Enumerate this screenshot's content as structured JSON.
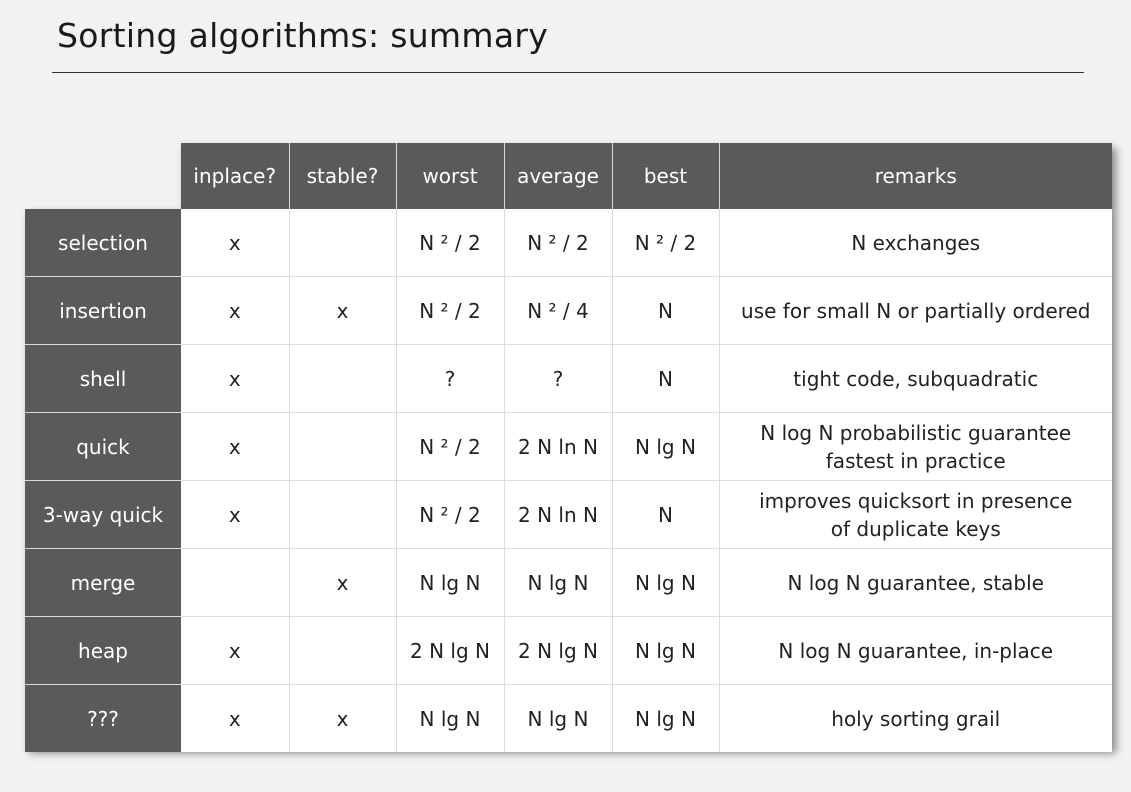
{
  "title": "Sorting algorithms: summary",
  "columns": [
    "inplace?",
    "stable?",
    "worst",
    "average",
    "best",
    "remarks"
  ],
  "rows": [
    {
      "name": "selection",
      "inplace": "x",
      "stable": "",
      "worst": "N ² / 2",
      "average": "N ² / 2",
      "best": "N ² / 2",
      "remarks": [
        "N exchanges"
      ]
    },
    {
      "name": "insertion",
      "inplace": "x",
      "stable": "x",
      "worst": "N ² / 2",
      "average": "N ² / 4",
      "best": "N",
      "remarks": [
        "use for small N or partially ordered"
      ]
    },
    {
      "name": "shell",
      "inplace": "x",
      "stable": "",
      "worst": "?",
      "average": "?",
      "best": "N",
      "remarks": [
        "tight code, subquadratic"
      ]
    },
    {
      "name": "quick",
      "inplace": "x",
      "stable": "",
      "worst": "N ² / 2",
      "average": "2 N ln N",
      "best": "N lg N",
      "remarks": [
        "N log N  probabilistic guarantee",
        "fastest in practice"
      ]
    },
    {
      "name": "3-way quick",
      "inplace": "x",
      "stable": "",
      "worst": "N ² / 2",
      "average": "2 N ln N",
      "best": "N",
      "remarks": [
        "improves quicksort in presence",
        "of duplicate keys"
      ]
    },
    {
      "name": "merge",
      "inplace": "",
      "stable": "x",
      "worst": "N lg N",
      "average": "N lg N",
      "best": "N lg N",
      "remarks": [
        "N log N  guarantee, stable"
      ]
    },
    {
      "name": "heap",
      "inplace": "x",
      "stable": "",
      "worst": "2 N lg N",
      "average": "2 N lg N",
      "best": "N lg N",
      "remarks": [
        "N log N  guarantee, in-place"
      ]
    },
    {
      "name": "???",
      "inplace": "x",
      "stable": "x",
      "worst": "N lg N",
      "average": "N lg N",
      "best": "N lg N",
      "remarks": [
        "holy sorting grail"
      ]
    }
  ],
  "colors": {
    "background": "#f2f2f2",
    "header_fill": "#5a5a5a",
    "cell_fill": "#ffffff",
    "header_text": "#ffffff",
    "body_text": "#222222"
  }
}
